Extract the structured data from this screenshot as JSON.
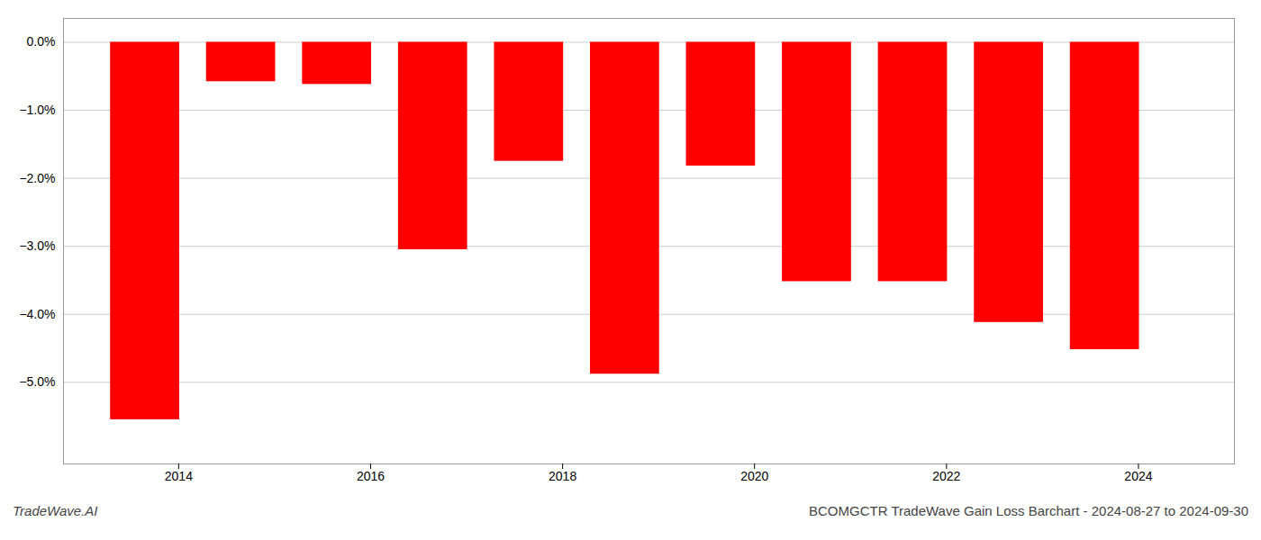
{
  "chart_data": {
    "type": "bar",
    "title": "BCOMGCTR TradeWave Gain Loss Barchart - 2024-08-27 to 2024-09-30",
    "annotations": [
      "TradeWave.AI"
    ],
    "x": [
      2013.65,
      2014.65,
      2015.65,
      2016.65,
      2017.65,
      2018.65,
      2019.65,
      2020.65,
      2021.65,
      2022.65,
      2023.65
    ],
    "values": [
      -5.55,
      -0.58,
      -0.62,
      -3.05,
      -1.75,
      -4.88,
      -1.82,
      -3.52,
      -3.52,
      -4.12,
      -4.52
    ],
    "color": "#ff0000",
    "xlim": [
      2012.8,
      2025.0
    ],
    "xticks": [
      2014,
      2016,
      2018,
      2020,
      2022,
      2024
    ],
    "ylim": [
      -6.2,
      0.35
    ],
    "yticks": [
      {
        "value": 0.0,
        "label": "0.0%"
      },
      {
        "value": -1.0,
        "label": "−1.0%"
      },
      {
        "value": -2.0,
        "label": "−2.0%"
      },
      {
        "value": -3.0,
        "label": "−3.0%"
      },
      {
        "value": -4.0,
        "label": "−4.0%"
      },
      {
        "value": -5.0,
        "label": "−5.0%"
      }
    ],
    "grid": true
  }
}
